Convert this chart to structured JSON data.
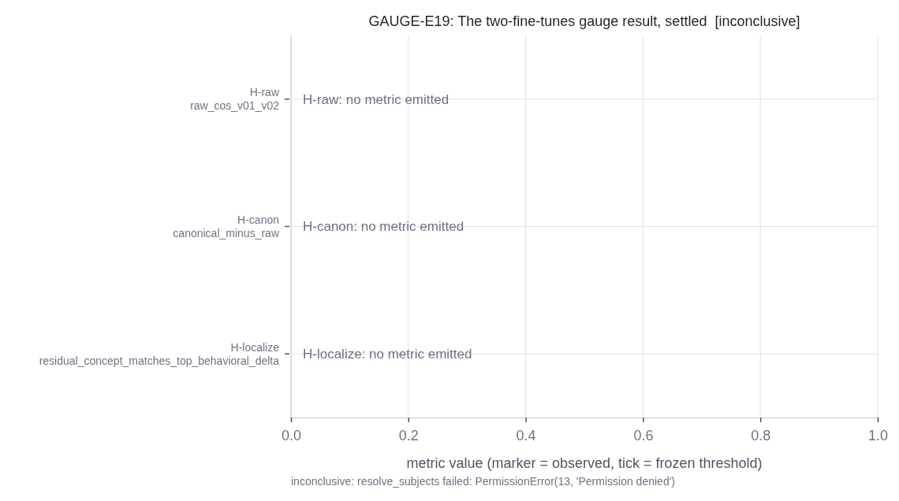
{
  "chart_data": {
    "type": "scatter",
    "orientation": "horizontal",
    "title": "GAUGE-E19: The two-fine-tunes gauge result, settled  [inconclusive]",
    "xlabel": "metric value (marker = observed, tick = frozen threshold)",
    "categories": [
      "H-raw\nraw_cos_v01_v02",
      "H-canon\ncanonical_minus_raw",
      "H-localize\nresidual_concept_matches_top_behavioral_delta"
    ],
    "values": [
      null,
      null,
      null
    ],
    "xlim": [
      0,
      1
    ],
    "xticks": [
      {
        "value": 0,
        "label": "0.0"
      },
      0.2,
      0.4,
      0.6,
      0.8,
      {
        "value": 1,
        "label": "1.0"
      }
    ],
    "grid": true,
    "annotations": [
      "H-raw: no metric emitted",
      "H-canon: no metric emitted",
      "H-localize: no metric emitted",
      "inconclusive: resolve_subjects failed: PermissionError(13, 'Permission denied')"
    ]
  }
}
